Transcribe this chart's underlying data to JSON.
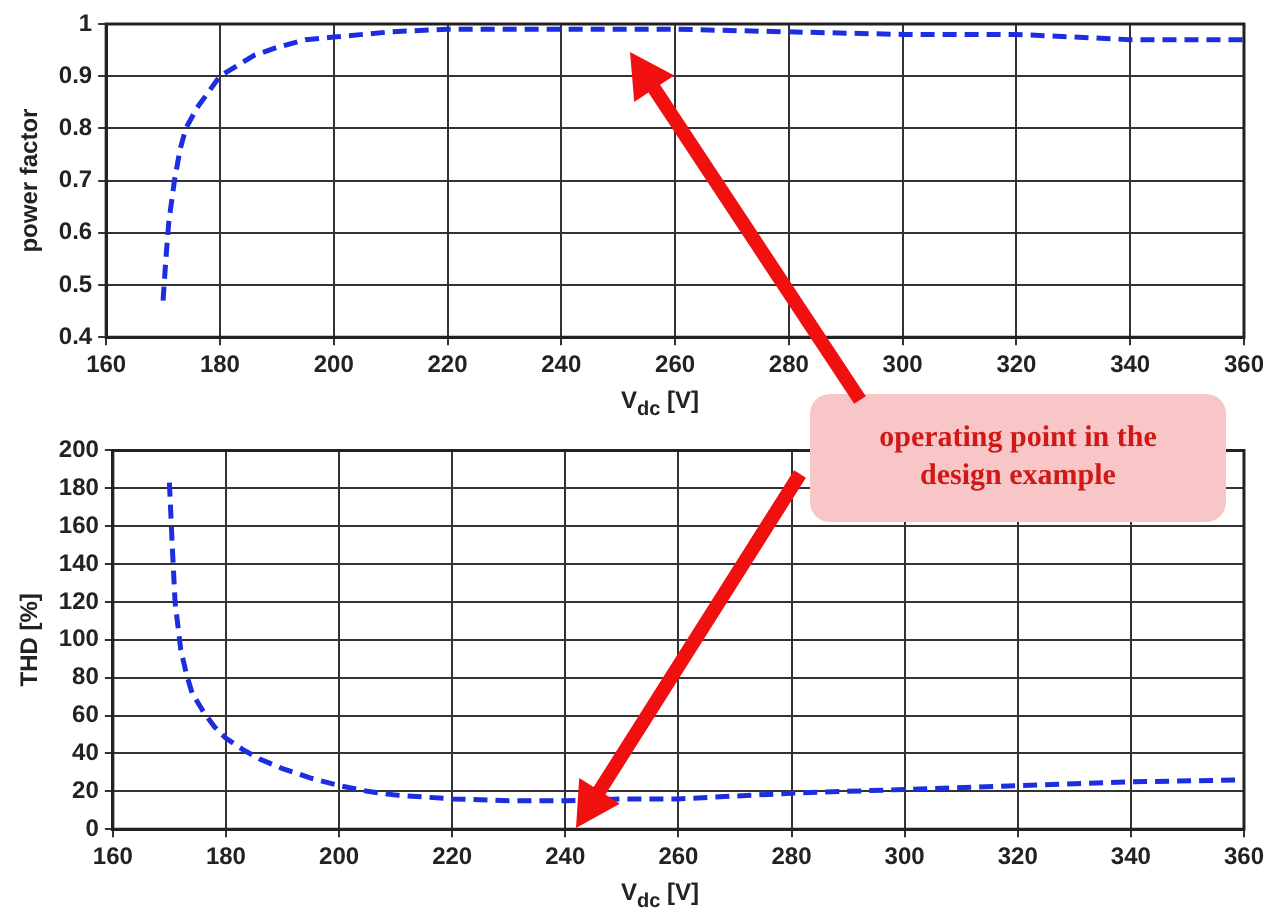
{
  "chart_data": [
    {
      "type": "line",
      "xlabel": "V$_{dc}$ [V]",
      "ylabel": "power factor",
      "x": [
        170,
        170.5,
        171,
        172,
        173,
        174,
        176,
        178,
        180,
        183,
        186,
        190,
        195,
        200,
        210,
        220,
        240,
        260,
        280,
        300,
        320,
        340,
        360
      ],
      "series": [
        {
          "color": "#1c2ee0",
          "values": [
            0.47,
            0.55,
            0.62,
            0.7,
            0.76,
            0.8,
            0.84,
            0.87,
            0.9,
            0.92,
            0.94,
            0.955,
            0.97,
            0.975,
            0.985,
            0.99,
            0.99,
            0.99,
            0.985,
            0.98,
            0.98,
            0.97,
            0.97
          ]
        }
      ],
      "xlim": [
        160,
        360
      ],
      "xticks": [
        160,
        180,
        200,
        220,
        240,
        260,
        280,
        300,
        320,
        340,
        360
      ],
      "ylim": [
        0.4,
        1
      ],
      "yticks": [
        0.4,
        0.5,
        0.6,
        0.7,
        0.8,
        0.9,
        1
      ],
      "grid": true,
      "legend": false,
      "marker": "none",
      "line_style": "dashed",
      "annotations": [
        "operating point in the design example"
      ]
    },
    {
      "type": "line",
      "xlabel": "V$_{dc}$ [V]",
      "ylabel": "THD [%]",
      "x": [
        170,
        170.5,
        171,
        172,
        173,
        174,
        176,
        178,
        180,
        183,
        186,
        190,
        195,
        200,
        205,
        210,
        220,
        230,
        240,
        250,
        260,
        280,
        300,
        320,
        340,
        360
      ],
      "series": [
        {
          "color": "#1c2ee0",
          "values": [
            183,
            150,
            120,
            95,
            82,
            72,
            62,
            54,
            48,
            42,
            37,
            32,
            27,
            23,
            20,
            18,
            16,
            15,
            15,
            16,
            16,
            19,
            21,
            23,
            25,
            26
          ]
        }
      ],
      "xlim": [
        160,
        360
      ],
      "xticks": [
        160,
        180,
        200,
        220,
        240,
        260,
        280,
        300,
        320,
        340,
        360
      ],
      "ylim": [
        0,
        200
      ],
      "yticks": [
        0,
        20,
        40,
        60,
        80,
        100,
        120,
        140,
        160,
        180,
        200
      ],
      "grid": true,
      "legend": false,
      "marker": "none",
      "line_style": "dashed"
    }
  ]
}
